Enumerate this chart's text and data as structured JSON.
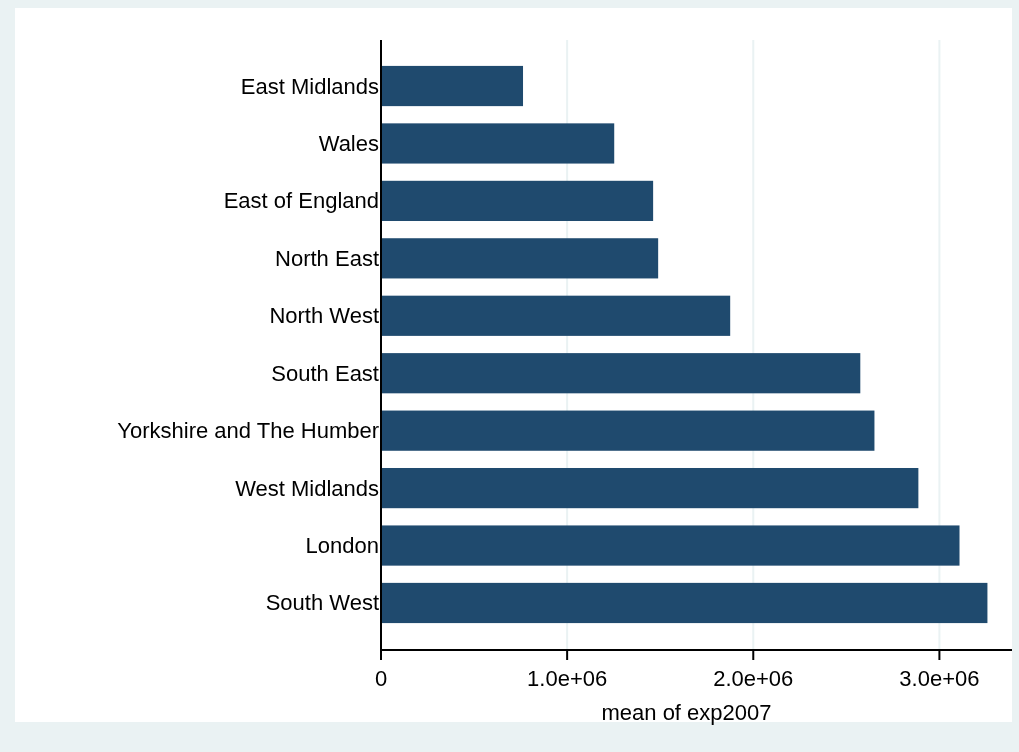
{
  "chart_data": {
    "type": "bar",
    "orientation": "horizontal",
    "xlabel": "mean of exp2007",
    "categories": [
      "East Midlands",
      "Wales",
      "East of England",
      "North East",
      "North West",
      "South East",
      "Yorkshire and The Humber",
      "West Midlands",
      "London",
      "South West"
    ],
    "values": [
      763000,
      1253000,
      1462000,
      1489000,
      1876000,
      2575000,
      2651000,
      2887000,
      3108000,
      3258000
    ],
    "color": "#1f4a6e",
    "xlim": [
      0,
      3390000
    ],
    "xticks": [
      {
        "value": 0,
        "label": "0"
      },
      {
        "value": 1000000,
        "label": "1.0e+06"
      },
      {
        "value": 2000000,
        "label": "2.0e+06"
      },
      {
        "value": 3000000,
        "label": "3.0e+06"
      }
    ],
    "grid": "x"
  }
}
